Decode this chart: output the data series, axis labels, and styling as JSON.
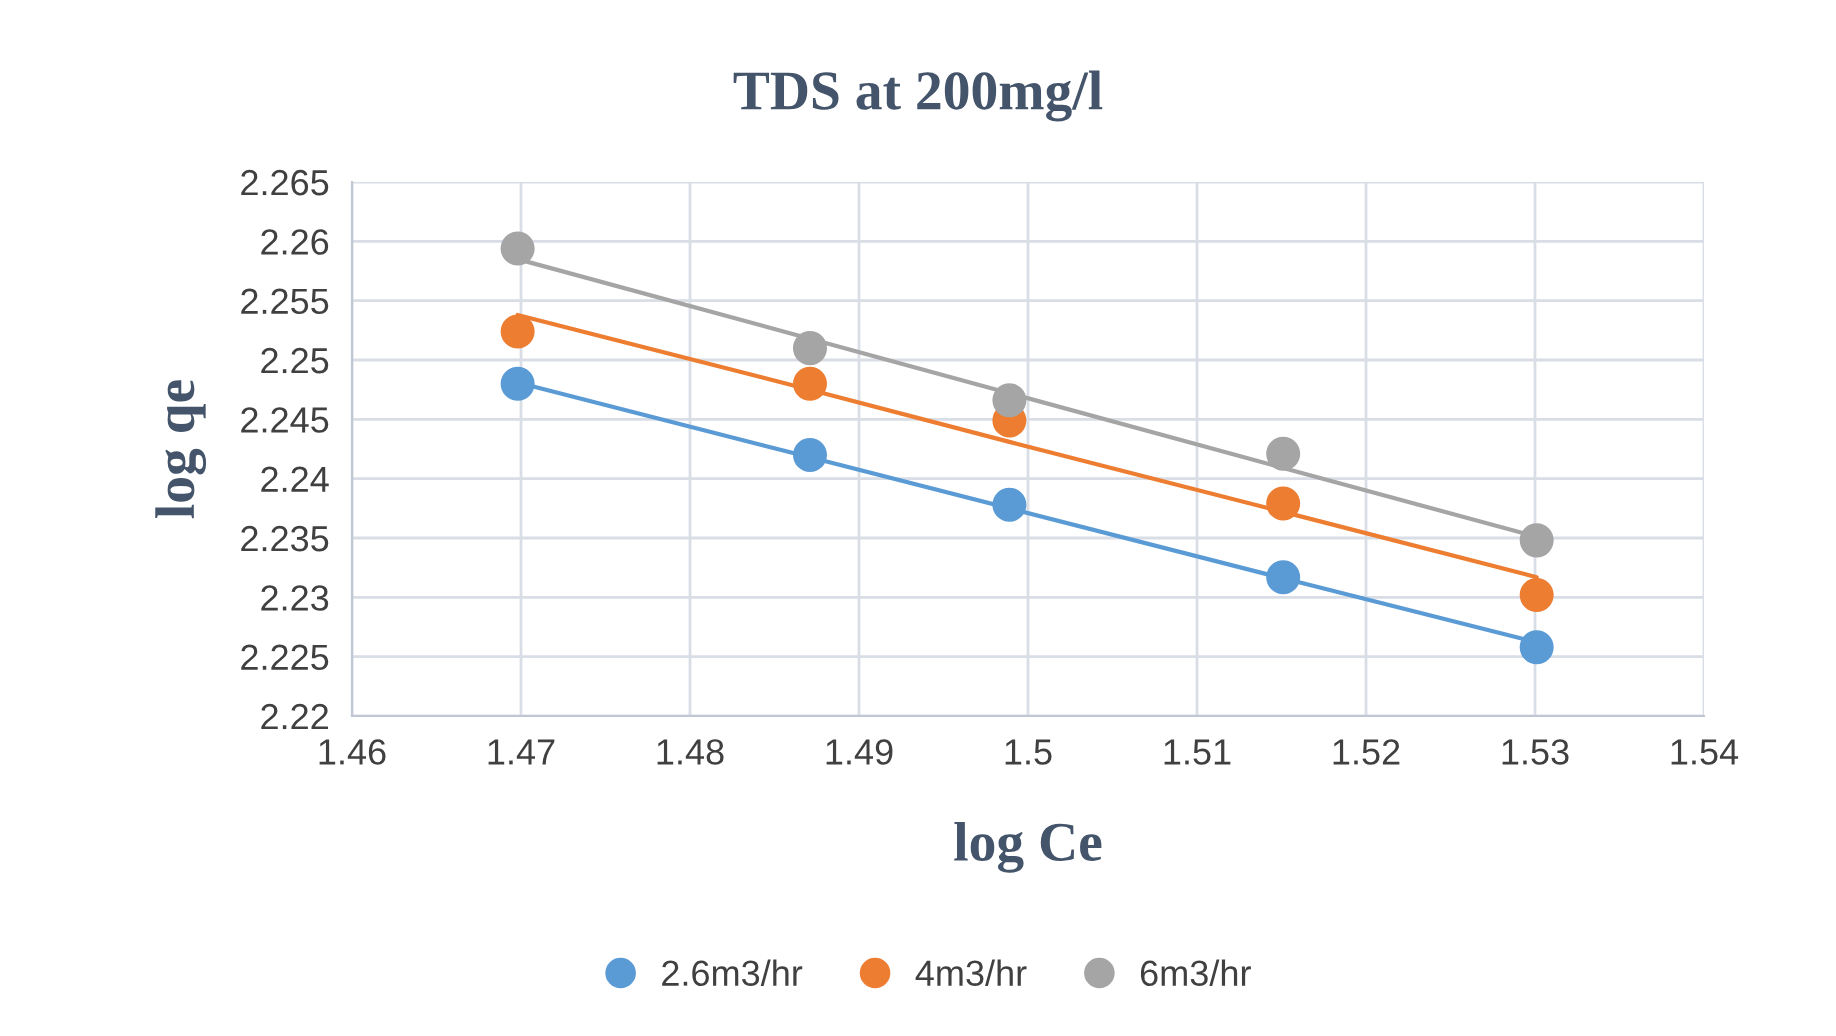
{
  "chart_data": {
    "type": "scatter",
    "title": "TDS at 200mg/l",
    "xlabel": "log Ce",
    "ylabel": "log qe",
    "x": [
      1.4698,
      1.4871,
      1.4989,
      1.5151,
      1.5301
    ],
    "series": [
      {
        "name": "2.6m3/hr",
        "color": "#5b9bd5",
        "values": [
          2.248,
          2.242,
          2.2378,
          2.2317,
          2.2258
        ]
      },
      {
        "name": "4m3/hr",
        "color": "#ed7d31",
        "values": [
          2.2524,
          2.248,
          2.2449,
          2.2379,
          2.2302
        ]
      },
      {
        "name": "6m3/hr",
        "color": "#a5a5a5",
        "values": [
          2.2594,
          2.251,
          2.2466,
          2.2421,
          2.2348
        ]
      },
      {
        "type": "line",
        "marker": "none",
        "color": "#5b9bd5",
        "values": [
          2.2481,
          2.2418,
          2.2375,
          2.2316,
          2.2262
        ]
      },
      {
        "type": "line",
        "marker": "none",
        "color": "#ed7d31",
        "values": [
          2.2538,
          2.2475,
          2.2431,
          2.2372,
          2.2317
        ]
      },
      {
        "type": "line",
        "marker": "none",
        "color": "#a5a5a5",
        "values": [
          2.2585,
          2.2518,
          2.2472,
          2.2409,
          2.2351
        ]
      }
    ],
    "xlim": [
      1.46,
      1.54
    ],
    "xticks": [
      1.46,
      1.47,
      1.48,
      1.49,
      1.5,
      1.51,
      1.52,
      1.53,
      1.54
    ],
    "ylim": [
      2.22,
      2.265
    ],
    "yticks": [
      2.22,
      2.225,
      2.23,
      2.235,
      2.24,
      2.245,
      2.25,
      2.255,
      2.26,
      2.265
    ],
    "grid": true,
    "legend": "bottom",
    "marker": "circle"
  }
}
